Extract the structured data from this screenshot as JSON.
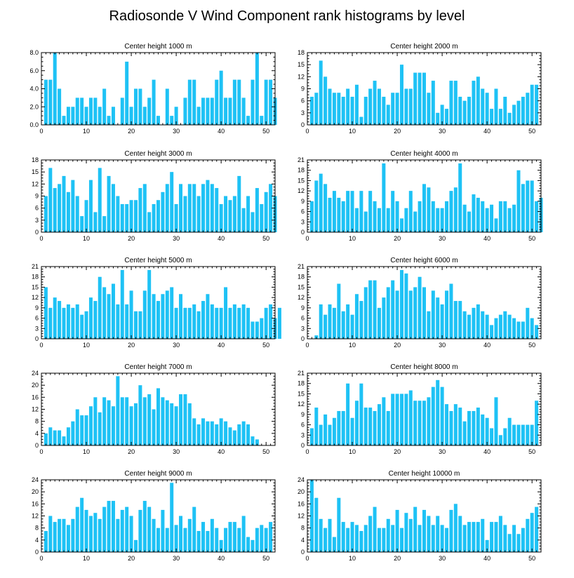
{
  "title": "Radiosonde V Wind Component rank histograms by level",
  "colors": {
    "bar": "#1ec2f5",
    "axis": "#000000",
    "background": "#ffffff"
  },
  "chart_data": [
    {
      "type": "bar",
      "title": "Center height 1000 m",
      "xlim": [
        0,
        52
      ],
      "ylim": [
        0,
        8
      ],
      "xticks": [
        0,
        10,
        20,
        30,
        40,
        50
      ],
      "yticks": [
        "0.0",
        "2.0",
        "4.0",
        "6.0",
        "8.0"
      ],
      "ytick_values": [
        0,
        2,
        4,
        6,
        8
      ],
      "values": [
        5,
        5,
        8,
        4,
        1,
        2,
        2,
        3,
        3,
        2,
        3,
        3,
        2,
        4,
        1,
        2,
        0,
        3,
        7,
        2,
        4,
        4,
        2,
        3,
        5,
        1,
        0,
        4,
        1,
        2,
        0,
        3,
        5,
        5,
        2,
        3,
        3,
        3,
        5,
        6,
        3,
        3,
        5,
        5,
        3,
        1,
        5,
        8,
        1,
        5,
        5,
        3
      ]
    },
    {
      "type": "bar",
      "title": "Center height 2000 m",
      "xlim": [
        0,
        52
      ],
      "ylim": [
        0,
        18
      ],
      "xticks": [
        0,
        10,
        20,
        30,
        40,
        50
      ],
      "yticks": [
        "0",
        "3",
        "6",
        "9",
        "12",
        "15",
        "18"
      ],
      "ytick_values": [
        0,
        3,
        6,
        9,
        12,
        15,
        18
      ],
      "values": [
        7,
        8,
        16,
        12,
        9,
        8,
        8,
        7,
        9,
        7,
        10,
        2,
        7,
        9,
        11,
        9,
        7,
        5,
        8,
        8,
        15,
        9,
        9,
        13,
        13,
        13,
        8,
        11,
        3,
        5,
        4,
        11,
        11,
        7,
        6,
        7,
        11,
        12,
        9,
        8,
        4,
        9,
        4,
        7,
        3,
        5,
        6,
        7,
        8,
        10,
        10
      ]
    },
    {
      "type": "bar",
      "title": "Center height 3000 m",
      "xlim": [
        0,
        52
      ],
      "ylim": [
        0,
        18
      ],
      "xticks": [
        0,
        10,
        20,
        30,
        40,
        50
      ],
      "yticks": [
        "0",
        "3",
        "6",
        "9",
        "12",
        "15",
        "18"
      ],
      "ytick_values": [
        0,
        3,
        6,
        9,
        12,
        15,
        18
      ],
      "values": [
        9,
        16,
        11,
        12,
        14,
        10,
        13,
        9,
        4,
        8,
        13,
        5,
        16,
        4,
        14,
        12,
        9,
        7,
        7,
        8,
        8,
        11,
        12,
        5,
        7,
        8,
        10,
        12,
        15,
        7,
        12,
        9,
        12,
        12,
        9,
        12,
        13,
        12,
        11,
        7,
        9,
        8,
        9,
        14,
        6,
        9,
        5,
        11,
        7,
        10,
        12,
        9
      ]
    },
    {
      "type": "bar",
      "title": "Center height 4000 m",
      "xlim": [
        0,
        52
      ],
      "ylim": [
        0,
        21
      ],
      "xticks": [
        0,
        10,
        20,
        30,
        40,
        50
      ],
      "yticks": [
        "0",
        "3",
        "6",
        "9",
        "12",
        "15",
        "18",
        "21"
      ],
      "ytick_values": [
        0,
        3,
        6,
        9,
        12,
        15,
        18,
        21
      ],
      "values": [
        9,
        15,
        17,
        14,
        10,
        12,
        10,
        9,
        12,
        12,
        7,
        12,
        6,
        12,
        9,
        7,
        20,
        7,
        12,
        9,
        4,
        7,
        12,
        6,
        9,
        14,
        13,
        9,
        7,
        7,
        9,
        12,
        13,
        20,
        8,
        6,
        11,
        10,
        9,
        7,
        8,
        4,
        9,
        9,
        7,
        8,
        18,
        14,
        15,
        15,
        9,
        10
      ]
    },
    {
      "type": "bar",
      "title": "Center height 5000 m",
      "xlim": [
        0,
        52
      ],
      "ylim": [
        0,
        21
      ],
      "xticks": [
        0,
        10,
        20,
        30,
        40,
        50
      ],
      "yticks": [
        "0",
        "3",
        "6",
        "9",
        "12",
        "15",
        "18",
        "21"
      ],
      "ytick_values": [
        0,
        3,
        6,
        9,
        12,
        15,
        18,
        21
      ],
      "values": [
        15,
        9,
        12,
        11,
        9,
        10,
        9,
        10,
        7,
        8,
        12,
        11,
        18,
        15,
        13,
        16,
        10,
        20,
        10,
        14,
        8,
        8,
        14,
        20,
        13,
        11,
        13,
        14,
        15,
        9,
        13,
        9,
        9,
        10,
        8,
        11,
        13,
        10,
        9,
        9,
        15,
        9,
        10,
        9,
        10,
        9,
        5,
        5,
        6,
        9,
        10,
        6,
        9
      ]
    },
    {
      "type": "bar",
      "title": "Center height 6000 m",
      "xlim": [
        0,
        52
      ],
      "ylim": [
        0,
        21
      ],
      "xticks": [
        0,
        10,
        20,
        30,
        40,
        50
      ],
      "yticks": [
        "0",
        "3",
        "6",
        "9",
        "12",
        "15",
        "18",
        "21"
      ],
      "ytick_values": [
        0,
        3,
        6,
        9,
        12,
        15,
        18,
        21
      ],
      "values": [
        0,
        1,
        10,
        7,
        10,
        9,
        16,
        8,
        10,
        7,
        13,
        11,
        15,
        17,
        17,
        9,
        12,
        15,
        17,
        14,
        20,
        19,
        14,
        15,
        18,
        15,
        8,
        14,
        12,
        10,
        14,
        16,
        11,
        11,
        8,
        7,
        9,
        10,
        8,
        7,
        4,
        6,
        7,
        8,
        7,
        6,
        5,
        5,
        9,
        6,
        4
      ]
    },
    {
      "type": "bar",
      "title": "Center height 7000 m",
      "xlim": [
        0,
        52
      ],
      "ylim": [
        0,
        24
      ],
      "xticks": [
        0,
        10,
        20,
        30,
        40,
        50
      ],
      "yticks": [
        "0",
        "4",
        "8",
        "12",
        "16",
        "20",
        "24"
      ],
      "ytick_values": [
        0,
        4,
        8,
        12,
        16,
        20,
        24
      ],
      "values": [
        4,
        6,
        5,
        5,
        3,
        6,
        8,
        12,
        10,
        10,
        13,
        16,
        11,
        16,
        15,
        13,
        23,
        16,
        16,
        13,
        14,
        20,
        16,
        17,
        12,
        19,
        16,
        15,
        14,
        13,
        17,
        17,
        14,
        9,
        7,
        9,
        8,
        8,
        7,
        9,
        8,
        6,
        5,
        7,
        8,
        7,
        3,
        2
      ]
    },
    {
      "type": "bar",
      "title": "Center height 8000 m",
      "xlim": [
        0,
        52
      ],
      "ylim": [
        0,
        21
      ],
      "xticks": [
        0,
        10,
        20,
        30,
        40,
        50
      ],
      "yticks": [
        "0",
        "3",
        "6",
        "9",
        "12",
        "15",
        "18",
        "21"
      ],
      "ytick_values": [
        0,
        3,
        6,
        9,
        12,
        15,
        18,
        21
      ],
      "values": [
        5,
        11,
        6,
        9,
        6,
        8,
        10,
        10,
        18,
        8,
        13,
        18,
        11,
        11,
        10,
        12,
        14,
        10,
        15,
        15,
        15,
        15,
        16,
        13,
        13,
        13,
        14,
        17,
        19,
        17,
        12,
        10,
        12,
        11,
        7,
        10,
        10,
        11,
        9,
        8,
        5,
        14,
        3,
        5,
        8,
        6,
        6,
        6,
        6,
        6,
        13
      ]
    },
    {
      "type": "bar",
      "title": "Center height 9000 m",
      "xlim": [
        0,
        52
      ],
      "ylim": [
        0,
        24
      ],
      "xticks": [
        0,
        10,
        20,
        30,
        40,
        50
      ],
      "yticks": [
        "0",
        "4",
        "8",
        "12",
        "16",
        "20",
        "24"
      ],
      "ytick_values": [
        0,
        4,
        8,
        12,
        16,
        20,
        24
      ],
      "values": [
        7,
        12,
        10,
        11,
        11,
        9,
        11,
        15,
        18,
        14,
        12,
        13,
        11,
        15,
        17,
        17,
        11,
        14,
        15,
        12,
        4,
        14,
        17,
        15,
        11,
        8,
        14,
        8,
        23,
        9,
        12,
        8,
        11,
        15,
        7,
        10,
        7,
        11,
        8,
        4,
        8,
        10,
        10,
        8,
        12,
        5,
        4,
        8,
        9,
        8,
        10
      ]
    },
    {
      "type": "bar",
      "title": "Center height 10000 m",
      "xlim": [
        0,
        52
      ],
      "ylim": [
        0,
        24
      ],
      "xticks": [
        0,
        10,
        20,
        30,
        40,
        50
      ],
      "yticks": [
        "0",
        "4",
        "8",
        "12",
        "16",
        "20",
        "24"
      ],
      "ytick_values": [
        0,
        4,
        8,
        12,
        16,
        20,
        24
      ],
      "values": [
        24,
        18,
        11,
        8,
        11,
        5,
        18,
        10,
        8,
        10,
        9,
        7,
        9,
        12,
        15,
        8,
        8,
        11,
        9,
        14,
        8,
        13,
        11,
        15,
        9,
        14,
        12,
        9,
        12,
        9,
        8,
        14,
        16,
        12,
        9,
        10,
        10,
        10,
        11,
        4,
        10,
        10,
        12,
        9,
        6,
        9,
        6,
        8,
        11,
        13,
        15
      ]
    }
  ]
}
